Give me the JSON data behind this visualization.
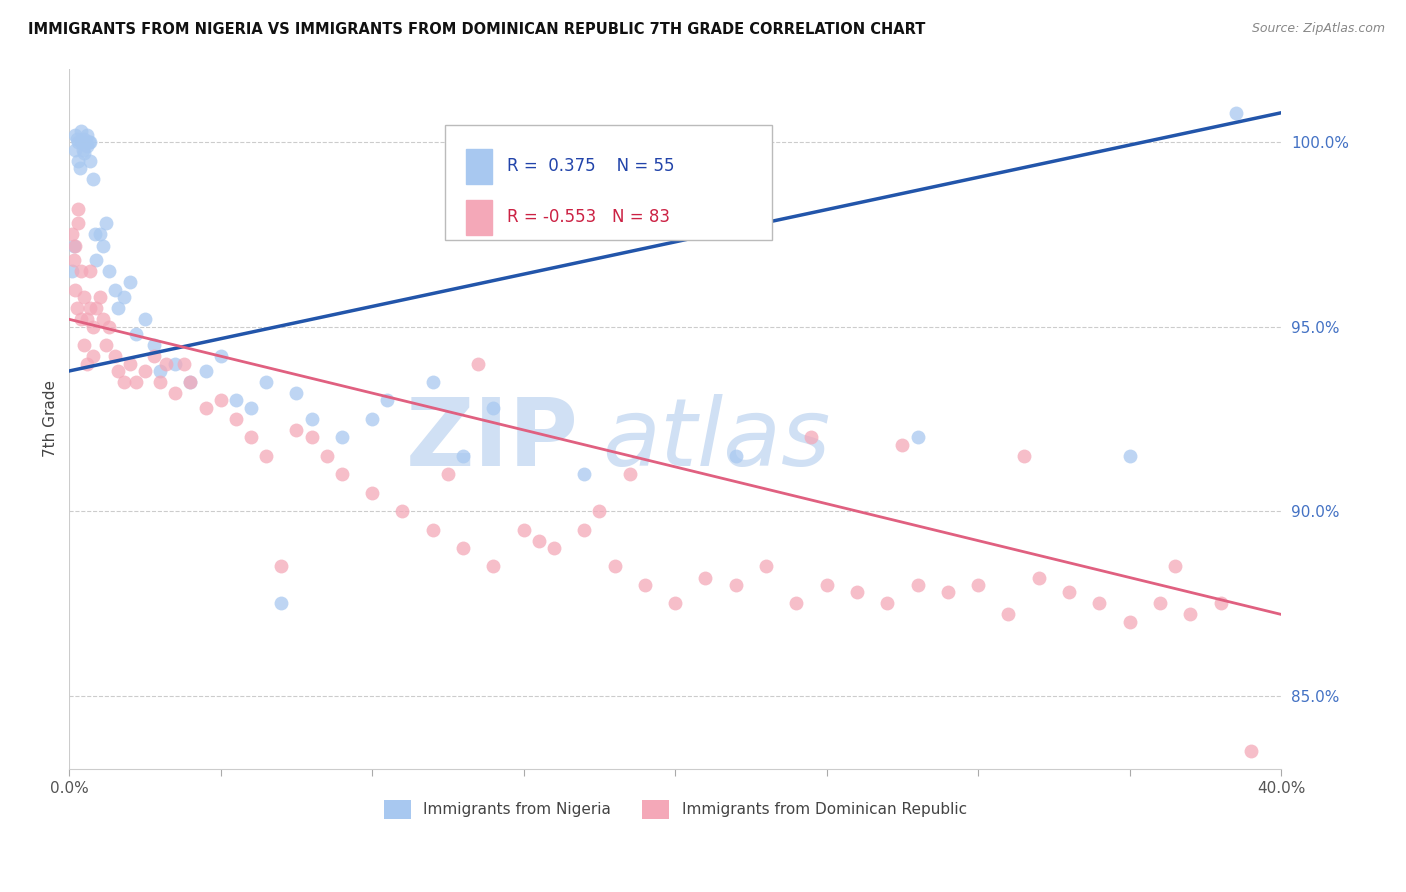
{
  "title": "IMMIGRANTS FROM NIGERIA VS IMMIGRANTS FROM DOMINICAN REPUBLIC 7TH GRADE CORRELATION CHART",
  "source": "Source: ZipAtlas.com",
  "ylabel": "7th Grade",
  "y_ticks": [
    85.0,
    90.0,
    95.0,
    100.0
  ],
  "x_range": [
    0.0,
    40.0
  ],
  "y_range": [
    83.0,
    102.0
  ],
  "legend_label_blue": "Immigrants from Nigeria",
  "legend_label_pink": "Immigrants from Dominican Republic",
  "R_blue": 0.375,
  "N_blue": 55,
  "R_pink": -0.553,
  "N_pink": 83,
  "blue_color": "#A8C8F0",
  "pink_color": "#F4A8B8",
  "trend_blue_color": "#2255AA",
  "trend_pink_color": "#E06080",
  "watermark_color": "#D0E0F4",
  "blue_trend_x0": 0.0,
  "blue_trend_y0": 93.8,
  "blue_trend_x1": 40.0,
  "blue_trend_y1": 100.8,
  "pink_trend_x0": 0.0,
  "pink_trend_y0": 95.2,
  "pink_trend_x1": 40.0,
  "pink_trend_y1": 87.2,
  "blue_dots_x": [
    0.1,
    0.15,
    0.2,
    0.2,
    0.25,
    0.3,
    0.3,
    0.35,
    0.4,
    0.4,
    0.45,
    0.5,
    0.5,
    0.55,
    0.6,
    0.6,
    0.65,
    0.7,
    0.7,
    0.8,
    0.85,
    0.9,
    1.0,
    1.1,
    1.2,
    1.3,
    1.5,
    1.6,
    1.8,
    2.0,
    2.2,
    2.5,
    2.8,
    3.0,
    3.5,
    4.0,
    4.5,
    5.0,
    5.5,
    6.0,
    6.5,
    7.0,
    7.5,
    8.0,
    9.0,
    10.0,
    10.5,
    12.0,
    13.0,
    14.0,
    17.0,
    22.0,
    28.0,
    35.0,
    38.5
  ],
  "blue_dots_y": [
    96.5,
    97.2,
    99.8,
    100.2,
    100.1,
    100.0,
    99.5,
    99.3,
    100.3,
    100.0,
    99.8,
    100.1,
    99.7,
    100.0,
    99.9,
    100.2,
    100.0,
    99.5,
    100.0,
    99.0,
    97.5,
    96.8,
    97.5,
    97.2,
    97.8,
    96.5,
    96.0,
    95.5,
    95.8,
    96.2,
    94.8,
    95.2,
    94.5,
    93.8,
    94.0,
    93.5,
    93.8,
    94.2,
    93.0,
    92.8,
    93.5,
    87.5,
    93.2,
    92.5,
    92.0,
    92.5,
    93.0,
    93.5,
    91.5,
    92.8,
    91.0,
    91.5,
    92.0,
    91.5,
    100.8
  ],
  "pink_dots_x": [
    0.1,
    0.15,
    0.2,
    0.2,
    0.25,
    0.3,
    0.3,
    0.4,
    0.4,
    0.5,
    0.5,
    0.6,
    0.6,
    0.7,
    0.7,
    0.8,
    0.8,
    0.9,
    1.0,
    1.1,
    1.2,
    1.3,
    1.5,
    1.6,
    1.8,
    2.0,
    2.2,
    2.5,
    2.8,
    3.0,
    3.2,
    3.5,
    3.8,
    4.0,
    4.5,
    5.0,
    5.5,
    6.0,
    6.5,
    7.0,
    7.5,
    8.0,
    8.5,
    9.0,
    10.0,
    11.0,
    12.0,
    12.5,
    13.0,
    14.0,
    15.0,
    15.5,
    16.0,
    17.0,
    17.5,
    18.0,
    19.0,
    20.0,
    21.0,
    22.0,
    23.0,
    24.0,
    25.0,
    26.0,
    27.0,
    28.0,
    29.0,
    30.0,
    31.0,
    32.0,
    33.0,
    34.0,
    35.0,
    36.0,
    37.0,
    38.0,
    39.0,
    24.5,
    27.5,
    31.5,
    36.5,
    13.5,
    18.5
  ],
  "pink_dots_y": [
    97.5,
    96.8,
    97.2,
    96.0,
    95.5,
    98.2,
    97.8,
    96.5,
    95.2,
    95.8,
    94.5,
    95.2,
    94.0,
    96.5,
    95.5,
    95.0,
    94.2,
    95.5,
    95.8,
    95.2,
    94.5,
    95.0,
    94.2,
    93.8,
    93.5,
    94.0,
    93.5,
    93.8,
    94.2,
    93.5,
    94.0,
    93.2,
    94.0,
    93.5,
    92.8,
    93.0,
    92.5,
    92.0,
    91.5,
    88.5,
    92.2,
    92.0,
    91.5,
    91.0,
    90.5,
    90.0,
    89.5,
    91.0,
    89.0,
    88.5,
    89.5,
    89.2,
    89.0,
    89.5,
    90.0,
    88.5,
    88.0,
    87.5,
    88.2,
    88.0,
    88.5,
    87.5,
    88.0,
    87.8,
    87.5,
    88.0,
    87.8,
    88.0,
    87.2,
    88.2,
    87.8,
    87.5,
    87.0,
    87.5,
    87.2,
    87.5,
    83.5,
    92.0,
    91.8,
    91.5,
    88.5,
    94.0,
    91.0
  ]
}
